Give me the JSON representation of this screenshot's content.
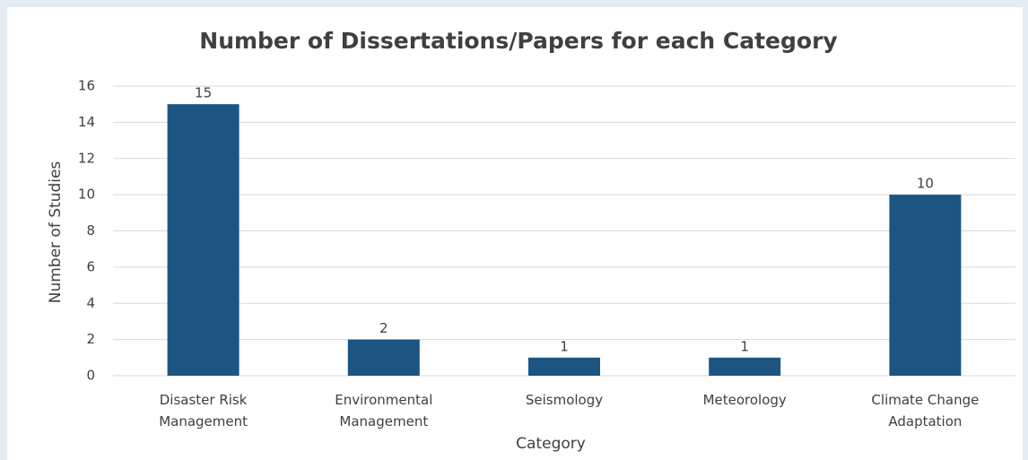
{
  "chart_data": {
    "type": "bar",
    "title": "Number of Dissertations/Papers for each Category",
    "x_label": "Category",
    "y_label": "Number of Studies",
    "categories": [
      "Disaster Risk Management",
      "Environmental Management",
      "Seismology",
      "Meteorology",
      "Climate Change Adaptation"
    ],
    "values": [
      15,
      2,
      1,
      1,
      10
    ],
    "color": "#1c5582",
    "ylim": [
      0,
      16
    ],
    "yticks": [
      0,
      2,
      4,
      6,
      8,
      10,
      12,
      14,
      16
    ],
    "grid": true
  }
}
